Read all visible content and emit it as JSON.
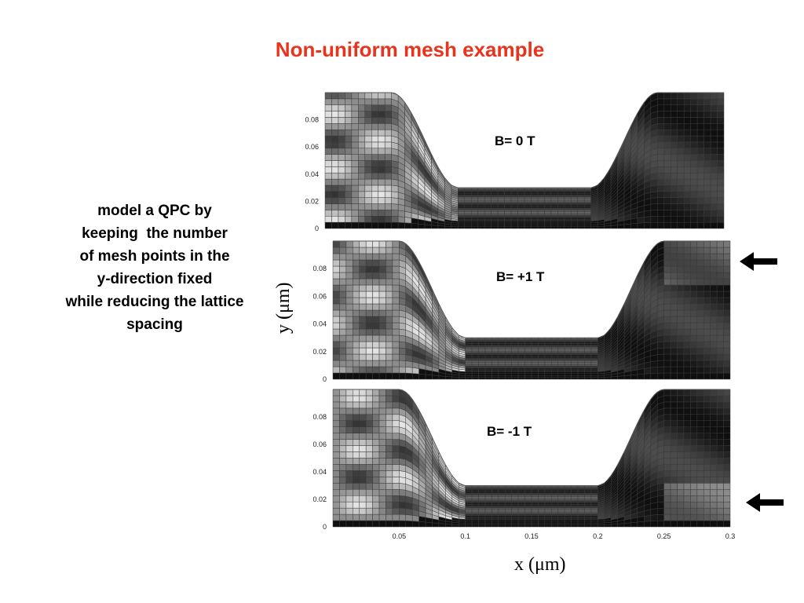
{
  "title": "Non-uniform mesh example",
  "side_text": {
    "lines": [
      "model a QPC by",
      "keeping  the number",
      "of mesh points in the",
      "y-direction fixed",
      "while reducing the lattice",
      "spacing"
    ]
  },
  "axes": {
    "y_title": "y (μm)",
    "x_title": "x (μm)",
    "y_ticks": [
      "0",
      "0.02",
      "0.04",
      "0.06",
      "0.08"
    ],
    "x_ticks": [
      "0.05",
      "0.1",
      "0.15",
      "0.2",
      "0.25",
      "0.3"
    ]
  },
  "panels": [
    {
      "label": "B= 0 T",
      "arrow_marker": false
    },
    {
      "label": "B= +1 T",
      "arrow_marker": true
    },
    {
      "label": "B= -1 T",
      "arrow_marker": true
    }
  ],
  "chart_data": [
    {
      "type": "heatmap",
      "title": "B= 0 T",
      "xlabel": "x (μm)",
      "ylabel": "y (μm)",
      "xlim": [
        0,
        0.3
      ],
      "ylim": [
        0,
        0.1
      ],
      "y_ticks": [
        0,
        0.02,
        0.04,
        0.06,
        0.08
      ],
      "note_marker": "none"
    },
    {
      "type": "heatmap",
      "title": "B= +1 T",
      "xlabel": "x (μm)",
      "ylabel": "y (μm)",
      "xlim": [
        0,
        0.3
      ],
      "ylim": [
        0,
        0.1
      ],
      "y_ticks": [
        0,
        0.02,
        0.04,
        0.06,
        0.08
      ],
      "note_marker": "arrow at top edge"
    },
    {
      "type": "heatmap",
      "title": "B= -1 T",
      "xlabel": "x (μm)",
      "ylabel": "y (μm)",
      "xlim": [
        0,
        0.3
      ],
      "ylim": [
        0,
        0.1
      ],
      "x_ticks": [
        0.05,
        0.1,
        0.15,
        0.2,
        0.25,
        0.3
      ],
      "y_ticks": [
        0,
        0.02,
        0.04,
        0.06,
        0.08
      ],
      "note_marker": "arrow near bottom edge"
    }
  ],
  "colors": {
    "title": "#e8341c",
    "mesh_light": "#e6e6e6",
    "mesh_dark": "#2a2a2a"
  }
}
